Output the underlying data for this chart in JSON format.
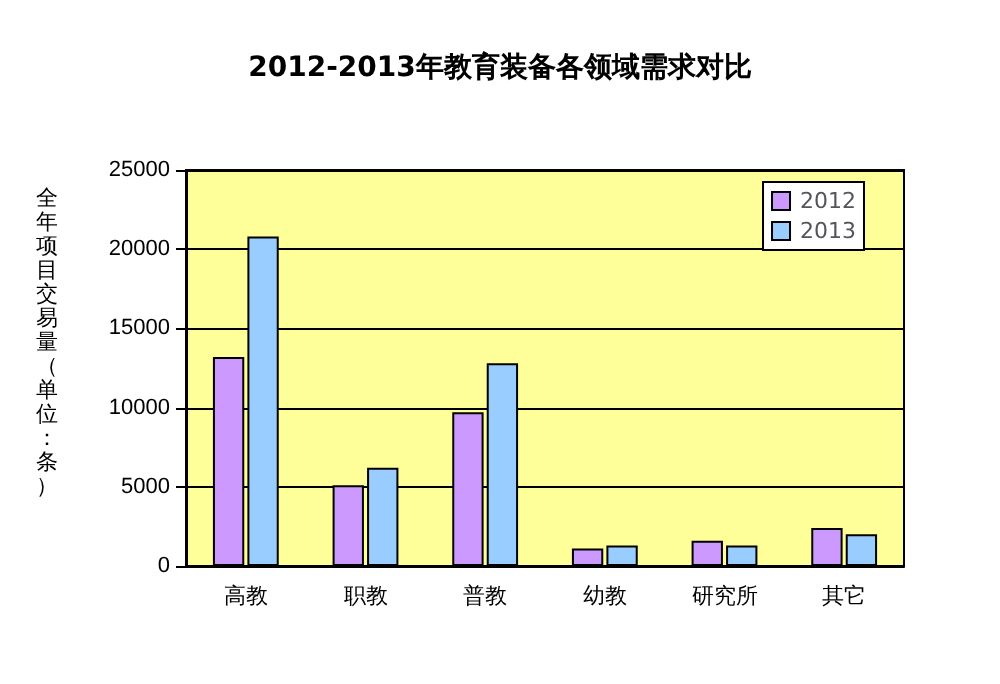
{
  "chart_data": {
    "type": "bar",
    "title": "2012-2013年教育装备各领域需求对比",
    "ylabel": "全年项目交易量（单位：条）",
    "categories": [
      "高教",
      "职教",
      "普教",
      "幼教",
      "研究所",
      "其它"
    ],
    "series": [
      {
        "name": "2012",
        "color": "#cc99ff",
        "values": [
          13200,
          5100,
          9700,
          1100,
          1600,
          2400
        ]
      },
      {
        "name": "2013",
        "color": "#99ccff",
        "values": [
          20800,
          6200,
          12800,
          1300,
          1300,
          2000
        ]
      }
    ],
    "ylim": [
      0,
      25000
    ],
    "yticks": [
      0,
      5000,
      10000,
      15000,
      20000,
      25000
    ],
    "grid": "y",
    "legend": "top right"
  }
}
